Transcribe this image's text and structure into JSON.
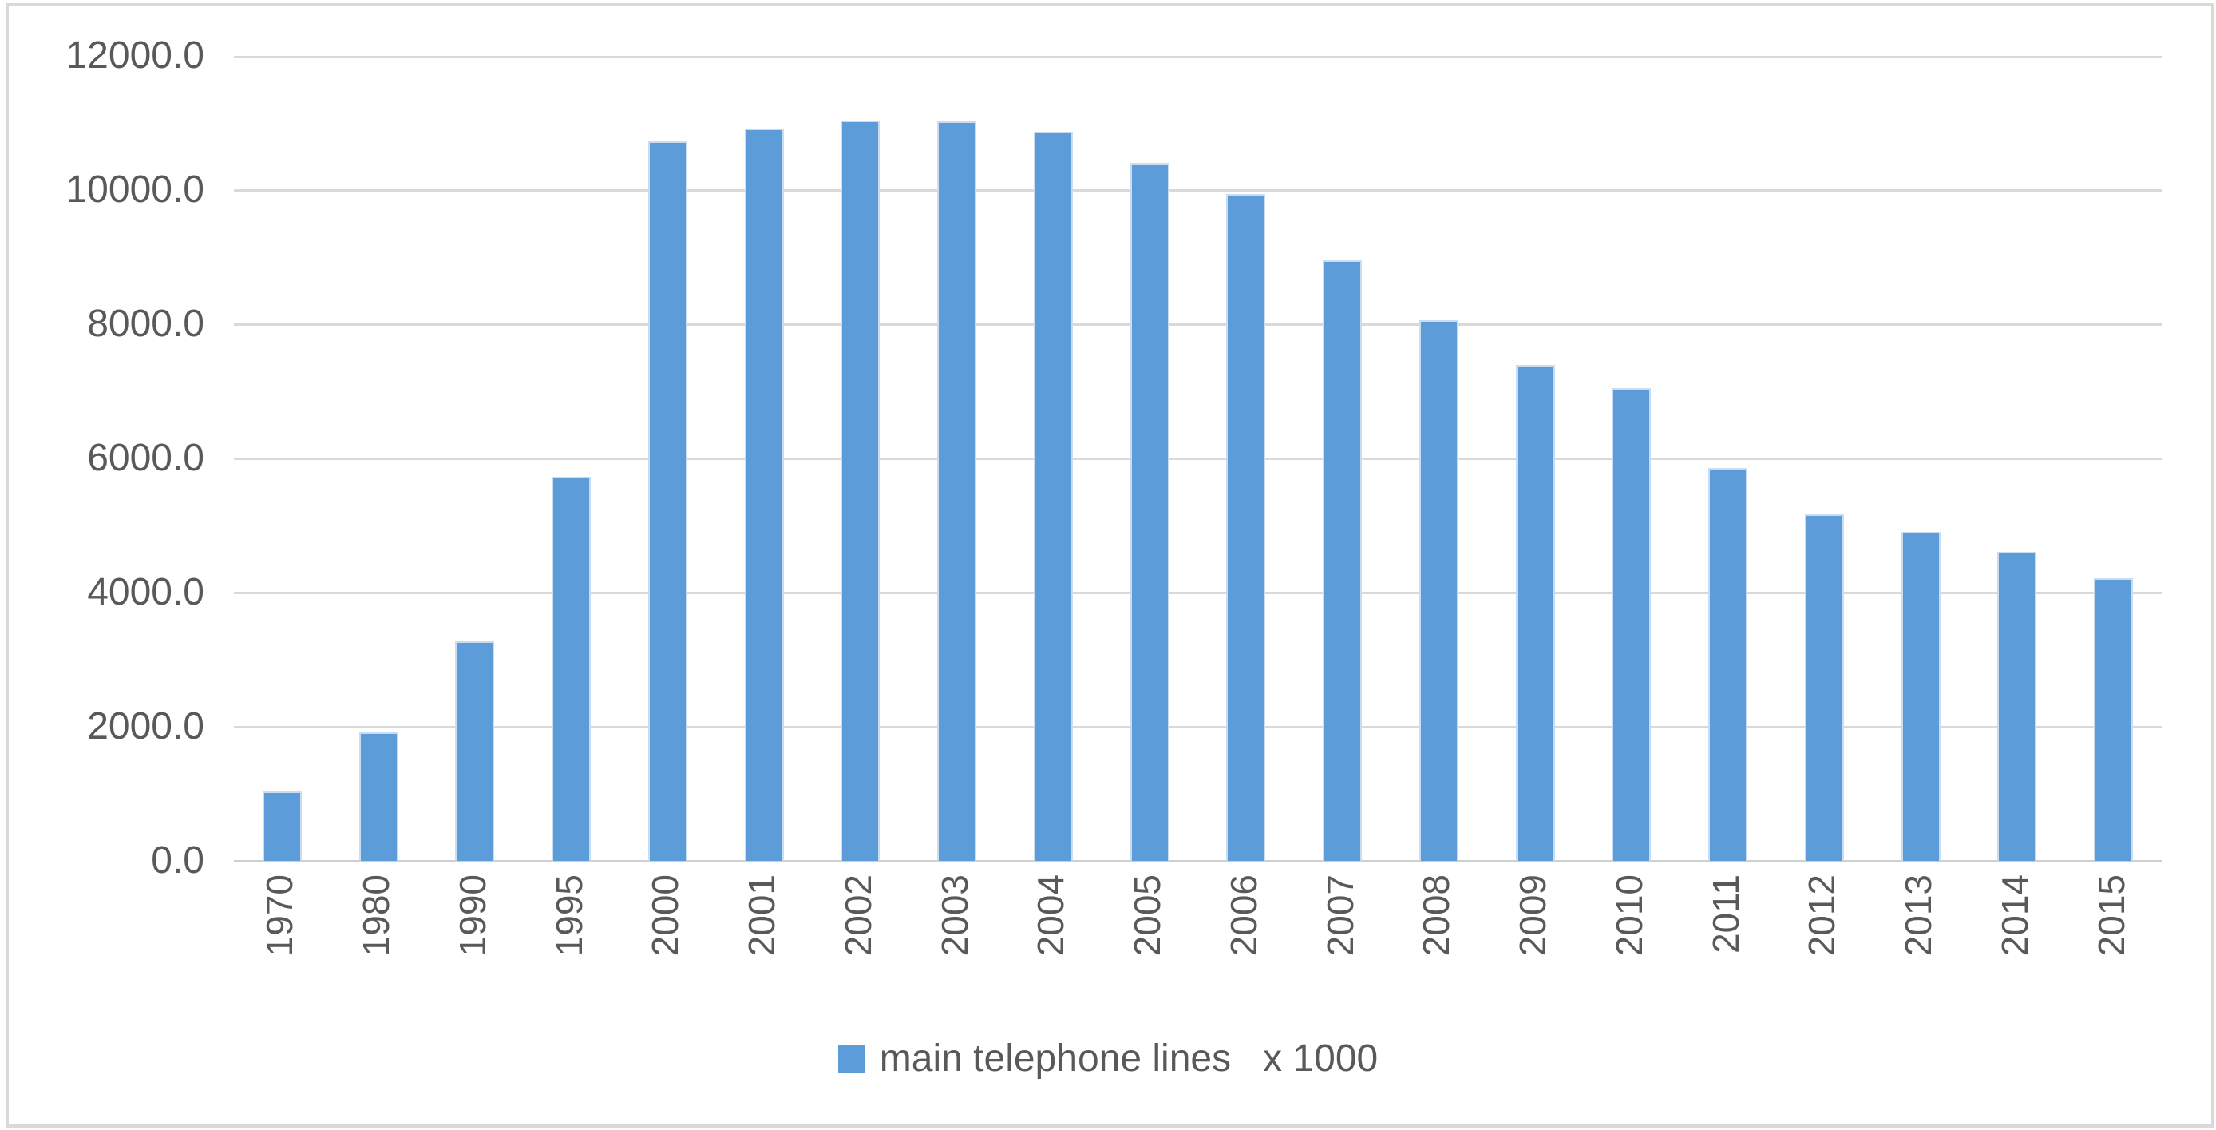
{
  "chart_data": {
    "type": "bar",
    "title": "",
    "xlabel": "",
    "ylabel": "",
    "categories": [
      "1970",
      "1980",
      "1990",
      "1995",
      "2000",
      "2001",
      "2002",
      "2003",
      "2004",
      "2005",
      "2006",
      "2007",
      "2008",
      "2009",
      "2010",
      "2011",
      "2012",
      "2013",
      "2014",
      "2015"
    ],
    "values": [
      1035,
      1920,
      3270,
      5730,
      10730,
      10920,
      11030,
      11020,
      10870,
      10400,
      9935,
      8950,
      8055,
      7390,
      7045,
      5855,
      5165,
      4910,
      4605,
      4215
    ],
    "series_name": "main telephone lines   x 1000",
    "ylim": [
      0,
      12000
    ],
    "ytick_step": 2000,
    "ytick_labels": [
      "0.0",
      "2000.0",
      "4000.0",
      "6000.0",
      "8000.0",
      "10000.0",
      "12000.0"
    ],
    "grid": true,
    "legend_position": "bottom"
  },
  "legend": {
    "label": "main telephone lines   x 1000"
  },
  "colors": {
    "bar_fill": "#5b9cd9",
    "bar_edge": "#c9dcf0",
    "gridline": "#d9d9d9",
    "axis_line": "#cfcfcf",
    "text": "#595959",
    "frame_border": "#d9d9d9"
  }
}
